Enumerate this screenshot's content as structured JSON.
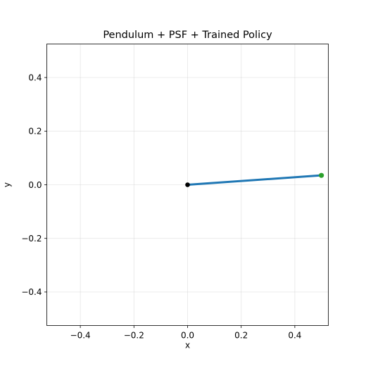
{
  "chart_data": {
    "type": "line",
    "title": "Pendulum + PSF + Trained Policy",
    "xlabel": "x",
    "ylabel": "y",
    "xlim": [
      -0.525,
      0.525
    ],
    "ylim": [
      -0.525,
      0.525
    ],
    "xticks": [
      -0.4,
      -0.2,
      0.0,
      0.2,
      0.4
    ],
    "xtick_labels": [
      "−0.4",
      "−0.2",
      "0.0",
      "0.2",
      "0.4"
    ],
    "yticks": [
      -0.4,
      -0.2,
      0.0,
      0.2,
      0.4
    ],
    "ytick_labels": [
      "−0.4",
      "−0.2",
      "0.0",
      "0.2",
      "0.4"
    ],
    "grid": true,
    "aspect": "equal",
    "series": [
      {
        "x": [
          0.0,
          0.499
        ],
        "y": [
          0.0,
          0.035
        ],
        "color": "#1f77b4"
      }
    ],
    "pivot": {
      "x": 0.0,
      "y": 0.0,
      "color": "#000000"
    },
    "bob": {
      "x": 0.499,
      "y": 0.035,
      "color": "#2ca02c"
    }
  }
}
